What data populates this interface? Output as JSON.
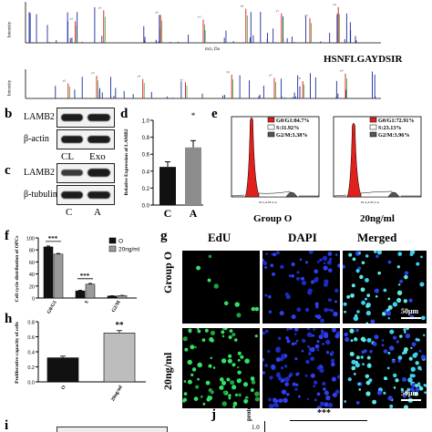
{
  "panel_labels": {
    "b": "b",
    "c": "c",
    "d": "d",
    "e": "e",
    "f": "f",
    "g": "g",
    "h": "h",
    "i": "i",
    "j": "j"
  },
  "ms": {
    "peptide": "HSNFLGAYDSIR",
    "ylabel": "Intensity",
    "xlabel": "m/z, Da"
  },
  "western_b": {
    "row1": "LAMB2",
    "row2": "β-actin",
    "lane1": "CL",
    "lane2": "Exo"
  },
  "western_c": {
    "row1": "LAMB2",
    "row2": "β-tubulin",
    "lane1": "C",
    "lane2": "A"
  },
  "panel_d": {
    "ylabel": "Relative Expression of LAMB2",
    "categories": [
      "C",
      "A"
    ],
    "values": [
      0.45,
      0.68
    ],
    "errors": [
      0.06,
      0.08
    ],
    "significance": "*",
    "ylim": [
      0,
      1.0
    ],
    "ticks": [
      "0.0",
      "0.2",
      "0.4",
      "0.6",
      "0.8",
      "1.0"
    ]
  },
  "panel_e": {
    "group_o": {
      "title": "Group O",
      "g0g1": "G0/G1:84.7%",
      "s": "S:11.92%",
      "g2m": "G2/M:3.38%"
    },
    "group_20": {
      "title": "20ng/ml",
      "g0g1": "G0/G1:72.91%",
      "s": "S:23.13%",
      "g2m": "G2/M:3.96%"
    },
    "xlabel": "FL2-A FL2-A",
    "colors": {
      "g0g1": "#e0201b",
      "s": "#ffffff",
      "g2m": "#555555"
    }
  },
  "chart_data": [
    {
      "type": "bar",
      "ylabel": "Cell cycle distribution of OPCs",
      "categories": [
        "G0/G1",
        "S",
        "G2/M"
      ],
      "series": [
        {
          "name": "O",
          "values": [
            85.0,
            12.0,
            3.4
          ],
          "errors": [
            1.5,
            1.0,
            0.4
          ]
        },
        {
          "name": "20ng/ml",
          "values": [
            73.0,
            23.0,
            4.0
          ],
          "errors": [
            1.2,
            1.2,
            0.5
          ]
        }
      ],
      "significance": [
        "***",
        "***",
        ""
      ],
      "ylim": [
        0,
        100
      ],
      "ticks": [
        "0",
        "20",
        "40",
        "60",
        "80",
        "100"
      ],
      "colors": [
        "#111111",
        "#9a9a9a"
      ]
    },
    {
      "type": "bar",
      "ylabel": "Proliferative capacity of cells",
      "categories": [
        "O",
        "20ng/ml"
      ],
      "values": [
        0.32,
        0.65
      ],
      "errors": [
        0.01,
        0.02
      ],
      "significance": "**",
      "ylim": [
        0,
        0.8
      ],
      "ticks": [
        "0.0",
        "0.2",
        "0.4",
        "0.6",
        "0.8"
      ],
      "colors": [
        "#111111",
        "#9a9a9a"
      ]
    }
  ],
  "panel_g": {
    "col1": "EdU",
    "col2": "DAPI",
    "col3": "Merged",
    "row1": "Group O",
    "row2": "20ng/ml",
    "scale": "50μm"
  },
  "panel_j": {
    "ylabel": "protein level",
    "sig": "***",
    "tick": "1.0"
  }
}
